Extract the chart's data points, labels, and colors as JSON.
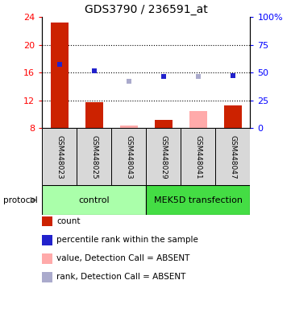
{
  "title": "GDS3790 / 236591_at",
  "samples": [
    "GSM448023",
    "GSM448025",
    "GSM448043",
    "GSM448029",
    "GSM448041",
    "GSM448047"
  ],
  "bar_values": [
    23.2,
    11.7,
    8.4,
    9.2,
    10.5,
    11.3
  ],
  "bar_absent": [
    false,
    false,
    true,
    false,
    true,
    false
  ],
  "rank_values": [
    17.2,
    16.3,
    14.8,
    15.5,
    15.5,
    15.6
  ],
  "rank_absent": [
    false,
    false,
    true,
    false,
    true,
    false
  ],
  "ylim_left": [
    8,
    24
  ],
  "ylim_right": [
    0,
    100
  ],
  "yticks_left": [
    8,
    12,
    16,
    20,
    24
  ],
  "yticks_right": [
    0,
    25,
    50,
    75,
    100
  ],
  "ytick_labels_right": [
    "0",
    "25",
    "50",
    "75",
    "100%"
  ],
  "color_bar_present": "#cc2200",
  "color_bar_absent": "#ffaaaa",
  "color_rank_present": "#2222cc",
  "color_rank_absent": "#aaaacc",
  "legend_items": [
    {
      "label": "count",
      "color": "#cc2200"
    },
    {
      "label": "percentile rank within the sample",
      "color": "#2222cc"
    },
    {
      "label": "value, Detection Call = ABSENT",
      "color": "#ffaaaa"
    },
    {
      "label": "rank, Detection Call = ABSENT",
      "color": "#aaaacc"
    }
  ]
}
